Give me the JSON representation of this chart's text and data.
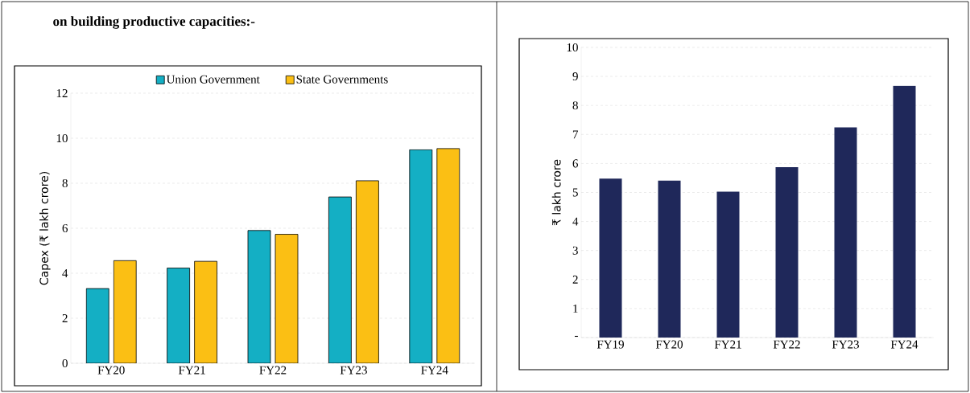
{
  "chart_data": [
    {
      "type": "bar",
      "title": "on building productive capacities:-",
      "ylabel": "Capex (₹ lakh crore)",
      "categories": [
        "FY20",
        "FY21",
        "FY22",
        "FY23",
        "FY24"
      ],
      "series": [
        {
          "name": "Union Government",
          "color": "#14afc4",
          "values": [
            3.32,
            4.23,
            5.9,
            7.39,
            9.49
          ]
        },
        {
          "name": "State Governments",
          "color": "#fbbf14",
          "values": [
            4.56,
            4.53,
            5.73,
            8.11,
            9.54
          ]
        }
      ],
      "ylim": [
        0,
        12
      ],
      "yticks": [
        0,
        2,
        4,
        6,
        8,
        10,
        12
      ],
      "grid": "y",
      "legend": "top"
    },
    {
      "type": "bar",
      "ylabel": "₹ lakh crore",
      "categories": [
        "FY19",
        "FY20",
        "FY21",
        "FY22",
        "FY23",
        "FY24"
      ],
      "series": [
        {
          "color": "#1f285a",
          "values": [
            5.48,
            5.41,
            5.03,
            5.87,
            7.24,
            8.68
          ]
        }
      ],
      "ylim": [
        0,
        10
      ],
      "yticks": [
        {
          "value": 0,
          "label": "-"
        },
        1,
        2,
        3,
        4,
        5,
        6,
        7,
        8,
        9,
        10
      ],
      "grid": "y"
    }
  ]
}
